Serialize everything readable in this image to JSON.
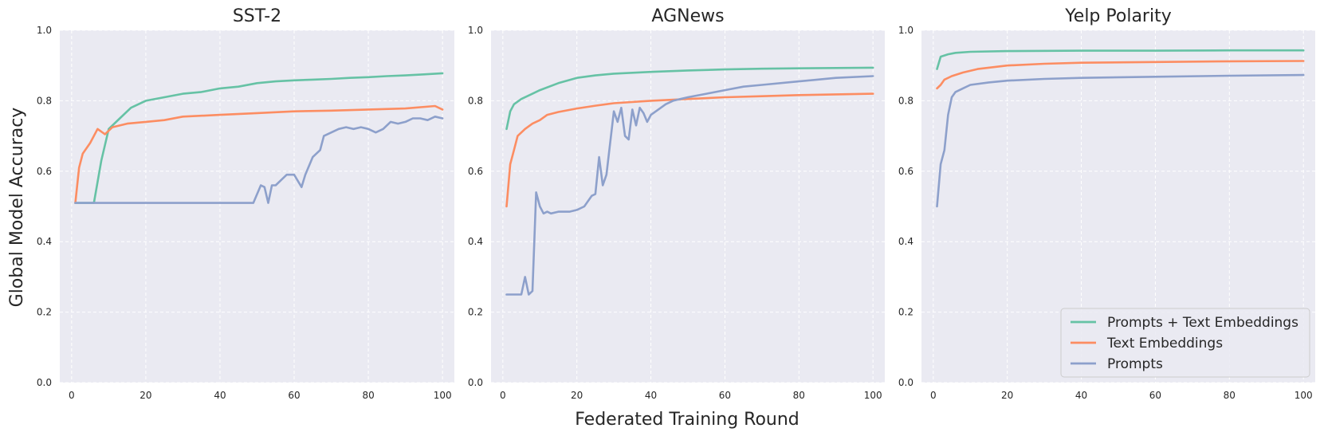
{
  "figure": {
    "xlabel": "Federated Training Round",
    "ylabel": "Global Model Accuracy"
  },
  "legend": {
    "placement": "lower-right of third panel",
    "items": [
      "Prompts + Text Embeddings",
      "Text Embeddings",
      "Prompts"
    ]
  },
  "colors": {
    "Prompts + Text Embeddings": "#66c2a5",
    "Text Embeddings": "#fc8d62",
    "Prompts": "#8da0cb",
    "panel_background": "#eaeaf2",
    "grid": "#ffffff"
  },
  "chart_data": [
    {
      "type": "line",
      "title": "SST-2",
      "xlim": [
        0,
        100
      ],
      "ylim": [
        0.0,
        1.0
      ],
      "xticks": [
        "0",
        "20",
        "40",
        "60",
        "80",
        "100"
      ],
      "yticks": [
        "0.0",
        "0.2",
        "0.4",
        "0.6",
        "0.8",
        "1.0"
      ],
      "grid": true,
      "series": [
        {
          "name": "Prompts + Text Embeddings",
          "x": [
            1,
            6,
            8,
            10,
            13,
            16,
            20,
            25,
            30,
            35,
            40,
            45,
            50,
            55,
            60,
            65,
            70,
            75,
            80,
            85,
            90,
            95,
            100
          ],
          "y": [
            0.51,
            0.51,
            0.63,
            0.72,
            0.75,
            0.78,
            0.8,
            0.81,
            0.82,
            0.825,
            0.835,
            0.84,
            0.85,
            0.855,
            0.858,
            0.86,
            0.862,
            0.865,
            0.867,
            0.87,
            0.872,
            0.875,
            0.878
          ]
        },
        {
          "name": "Text Embeddings",
          "x": [
            1,
            2,
            3,
            5,
            7,
            9,
            11,
            15,
            20,
            25,
            30,
            40,
            50,
            60,
            70,
            80,
            90,
            98,
            100
          ],
          "y": [
            0.51,
            0.61,
            0.65,
            0.68,
            0.72,
            0.705,
            0.725,
            0.735,
            0.74,
            0.745,
            0.755,
            0.76,
            0.765,
            0.77,
            0.772,
            0.775,
            0.778,
            0.785,
            0.775
          ]
        },
        {
          "name": "Prompts",
          "x": [
            1,
            49,
            51,
            52,
            53,
            54,
            55,
            57,
            58,
            60,
            62,
            63,
            65,
            67,
            68,
            70,
            72,
            74,
            76,
            78,
            80,
            82,
            84,
            86,
            88,
            90,
            92,
            94,
            96,
            98,
            100
          ],
          "y": [
            0.51,
            0.51,
            0.56,
            0.555,
            0.51,
            0.56,
            0.56,
            0.58,
            0.59,
            0.59,
            0.555,
            0.59,
            0.64,
            0.66,
            0.7,
            0.71,
            0.72,
            0.725,
            0.72,
            0.725,
            0.72,
            0.71,
            0.72,
            0.74,
            0.735,
            0.74,
            0.75,
            0.75,
            0.745,
            0.755,
            0.75
          ]
        }
      ]
    },
    {
      "type": "line",
      "title": "AGNews",
      "xlim": [
        0,
        100
      ],
      "ylim": [
        0.0,
        1.0
      ],
      "xticks": [
        "0",
        "20",
        "40",
        "60",
        "80",
        "100"
      ],
      "yticks": [
        "0.0",
        "0.2",
        "0.4",
        "0.6",
        "0.8",
        "1.0"
      ],
      "grid": true,
      "series": [
        {
          "name": "Prompts + Text Embeddings",
          "x": [
            1,
            2,
            3,
            5,
            8,
            10,
            15,
            20,
            25,
            30,
            40,
            50,
            60,
            70,
            80,
            90,
            100
          ],
          "y": [
            0.72,
            0.77,
            0.79,
            0.805,
            0.82,
            0.83,
            0.85,
            0.865,
            0.872,
            0.877,
            0.882,
            0.886,
            0.889,
            0.891,
            0.892,
            0.893,
            0.894
          ]
        },
        {
          "name": "Text Embeddings",
          "x": [
            1,
            2,
            3,
            4,
            6,
            8,
            10,
            12,
            15,
            20,
            25,
            30,
            40,
            50,
            60,
            70,
            80,
            90,
            100
          ],
          "y": [
            0.5,
            0.62,
            0.66,
            0.7,
            0.72,
            0.735,
            0.745,
            0.76,
            0.768,
            0.778,
            0.786,
            0.793,
            0.8,
            0.805,
            0.81,
            0.813,
            0.816,
            0.818,
            0.82
          ]
        },
        {
          "name": "Prompts",
          "x": [
            1,
            5,
            6,
            7,
            8,
            9,
            10,
            11,
            12,
            13,
            15,
            18,
            20,
            22,
            24,
            25,
            26,
            27,
            28,
            30,
            31,
            32,
            33,
            34,
            35,
            36,
            37,
            38,
            39,
            40,
            42,
            44,
            46,
            48,
            50,
            55,
            60,
            65,
            70,
            80,
            90,
            100
          ],
          "y": [
            0.25,
            0.25,
            0.3,
            0.25,
            0.26,
            0.54,
            0.5,
            0.48,
            0.485,
            0.48,
            0.485,
            0.485,
            0.49,
            0.5,
            0.53,
            0.535,
            0.64,
            0.56,
            0.59,
            0.77,
            0.74,
            0.78,
            0.7,
            0.69,
            0.775,
            0.73,
            0.78,
            0.765,
            0.74,
            0.76,
            0.775,
            0.79,
            0.8,
            0.805,
            0.81,
            0.82,
            0.83,
            0.84,
            0.845,
            0.855,
            0.865,
            0.87
          ]
        }
      ]
    },
    {
      "type": "line",
      "title": "Yelp Polarity",
      "xlim": [
        0,
        100
      ],
      "ylim": [
        0.0,
        1.0
      ],
      "xticks": [
        "0",
        "20",
        "40",
        "60",
        "80",
        "100"
      ],
      "yticks": [
        "0.0",
        "0.2",
        "0.4",
        "0.6",
        "0.8",
        "1.0"
      ],
      "grid": true,
      "series": [
        {
          "name": "Prompts + Text Embeddings",
          "x": [
            1,
            2,
            4,
            6,
            10,
            20,
            40,
            60,
            80,
            100
          ],
          "y": [
            0.89,
            0.925,
            0.932,
            0.936,
            0.939,
            0.941,
            0.942,
            0.942,
            0.943,
            0.943
          ]
        },
        {
          "name": "Text Embeddings",
          "x": [
            1,
            2,
            3,
            5,
            8,
            12,
            20,
            30,
            40,
            60,
            80,
            100
          ],
          "y": [
            0.835,
            0.845,
            0.86,
            0.87,
            0.88,
            0.89,
            0.9,
            0.905,
            0.908,
            0.91,
            0.912,
            0.913
          ]
        },
        {
          "name": "Prompts",
          "x": [
            1,
            2,
            3,
            4,
            5,
            6,
            8,
            10,
            15,
            20,
            30,
            40,
            60,
            80,
            100
          ],
          "y": [
            0.5,
            0.62,
            0.66,
            0.76,
            0.81,
            0.825,
            0.835,
            0.845,
            0.852,
            0.857,
            0.862,
            0.865,
            0.868,
            0.871,
            0.873
          ]
        }
      ]
    }
  ]
}
